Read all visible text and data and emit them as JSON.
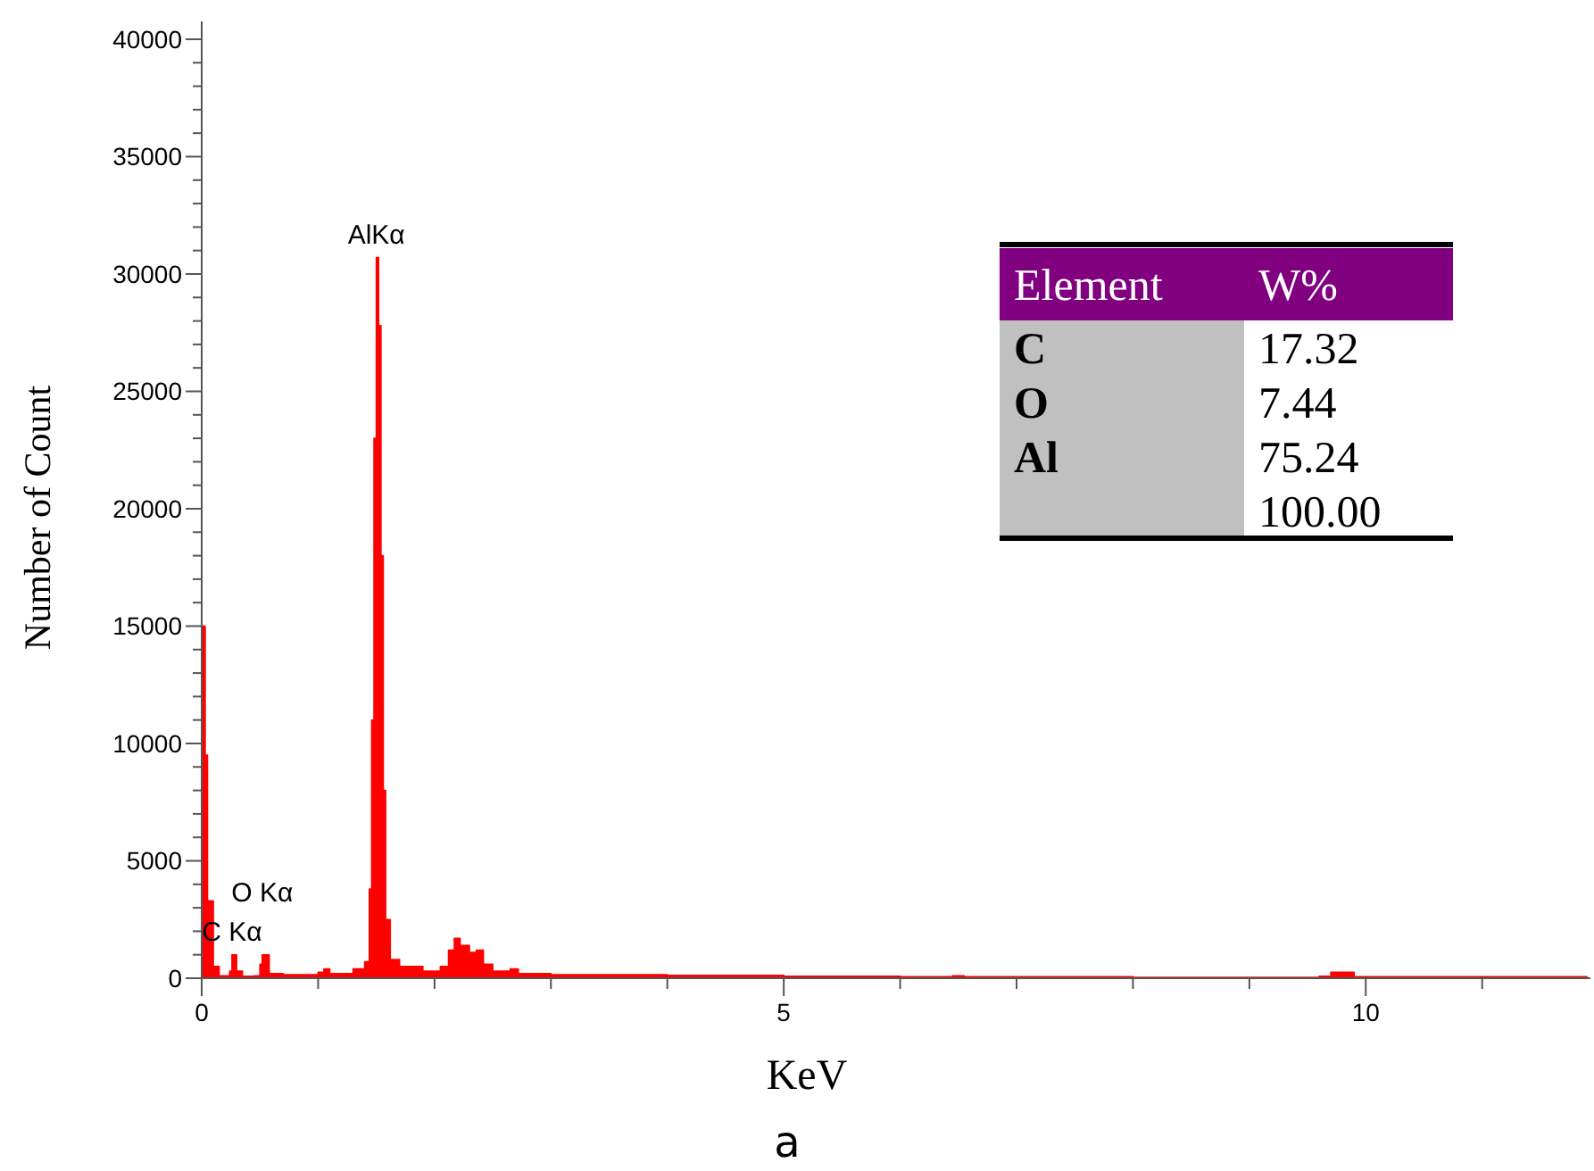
{
  "chart_data": {
    "type": "area",
    "title": "a",
    "xlabel": "KeV",
    "ylabel": "Number of Count",
    "x": [
      0,
      0.02,
      0.03,
      0.05,
      0.1,
      0.15,
      0.2,
      0.24,
      0.26,
      0.3,
      0.35,
      0.45,
      0.5,
      0.52,
      0.58,
      0.7,
      1.0,
      1.05,
      1.1,
      1.3,
      1.4,
      1.44,
      1.46,
      1.48,
      1.5,
      1.52,
      1.54,
      1.56,
      1.58,
      1.62,
      1.7,
      1.9,
      2.05,
      2.12,
      2.17,
      2.22,
      2.3,
      2.36,
      2.42,
      2.5,
      2.65,
      2.72,
      3,
      4,
      5,
      6,
      6.45,
      6.55,
      8,
      9.6,
      9.7,
      9.78,
      9.9,
      11,
      11.9
    ],
    "series": [
      {
        "color": "#ff0000",
        "values": [
          15000,
          15000,
          9500,
          3300,
          500,
          100,
          100,
          300,
          1000,
          300,
          80,
          100,
          600,
          1000,
          200,
          150,
          250,
          400,
          200,
          400,
          700,
          3800,
          11000,
          23000,
          30700,
          27800,
          18000,
          8000,
          2500,
          800,
          500,
          300,
          500,
          1200,
          1700,
          1400,
          1100,
          1200,
          600,
          300,
          400,
          200,
          150,
          120,
          80,
          60,
          100,
          60,
          40,
          80,
          250,
          250,
          60,
          60,
          50
        ]
      }
    ],
    "xlim": [
      0,
      11.93
    ],
    "ylim": [
      0,
      40760
    ],
    "xticks": [
      0,
      {
        "value": 1,
        "label": null
      },
      {
        "value": 2,
        "label": null
      },
      {
        "value": 3,
        "label": null
      },
      {
        "value": 4,
        "label": null
      },
      5,
      {
        "value": 6,
        "label": null
      },
      {
        "value": 7,
        "label": null
      },
      {
        "value": 8,
        "label": null
      },
      {
        "value": 9,
        "label": null
      },
      10,
      {
        "value": 11,
        "label": null
      }
    ],
    "yticks": [
      0,
      5000,
      10000,
      15000,
      20000,
      25000,
      30000,
      35000,
      40000
    ],
    "annotations": [
      {
        "text": "AlKα",
        "x": 1.5,
        "y": 30700
      },
      {
        "text": "C Kα",
        "x": 0.26,
        "y": 1000
      },
      {
        "text": "O Kα",
        "x": 0.52,
        "y": 1000
      },
      "Element",
      "W%",
      "C",
      "17.32",
      "O",
      "7.44",
      "Al",
      "75.24",
      "100.00"
    ]
  }
}
